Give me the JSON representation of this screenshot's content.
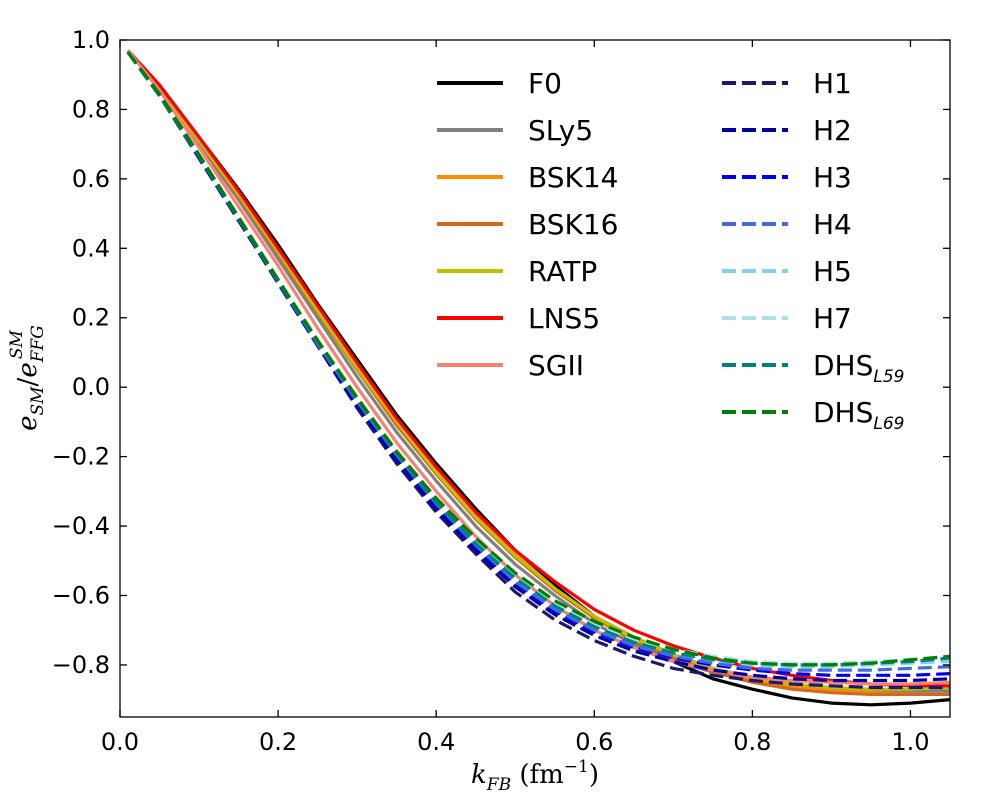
{
  "chart_data": {
    "type": "line",
    "xlabel": "k_FB (fm^-1)",
    "ylabel": "e_SM / e_FFG^SM",
    "xlim": [
      0.0,
      1.05
    ],
    "ylim": [
      -0.95,
      1.0
    ],
    "x_ticks": [
      0.0,
      0.2,
      0.4,
      0.6,
      0.8,
      1.0
    ],
    "y_ticks": [
      1.0,
      0.8,
      0.6,
      0.4,
      0.2,
      0.0,
      -0.2,
      -0.4,
      -0.6,
      -0.8
    ],
    "x_tick_labels": [
      "0.0",
      "0.2",
      "0.4",
      "0.6",
      "0.8",
      "1.0"
    ],
    "y_tick_labels": [
      "1.0",
      "0.8",
      "0.6",
      "0.4",
      "0.2",
      "0.0",
      "−0.2",
      "−0.4",
      "−0.6",
      "−0.8"
    ],
    "x": [
      0.01,
      0.05,
      0.1,
      0.15,
      0.2,
      0.25,
      0.3,
      0.35,
      0.4,
      0.45,
      0.5,
      0.55,
      0.6,
      0.65,
      0.7,
      0.75,
      0.8,
      0.85,
      0.9,
      0.95,
      1.0,
      1.05
    ],
    "legend": "top-right, two columns",
    "series": [
      {
        "name": "F0",
        "label": "F0",
        "sub": "",
        "color": "#000000",
        "dash": "solid",
        "values": [
          0.97,
          0.87,
          0.72,
          0.57,
          0.41,
          0.24,
          0.08,
          -0.08,
          -0.22,
          -0.35,
          -0.47,
          -0.57,
          -0.66,
          -0.73,
          -0.79,
          -0.84,
          -0.87,
          -0.895,
          -0.91,
          -0.915,
          -0.91,
          -0.9
        ]
      },
      {
        "name": "SLy5",
        "label": "SLy5",
        "sub": "",
        "color": "#808080",
        "dash": "solid",
        "values": [
          0.97,
          0.86,
          0.7,
          0.54,
          0.37,
          0.2,
          0.03,
          -0.13,
          -0.27,
          -0.4,
          -0.51,
          -0.6,
          -0.68,
          -0.74,
          -0.79,
          -0.82,
          -0.845,
          -0.86,
          -0.87,
          -0.875,
          -0.875,
          -0.875
        ]
      },
      {
        "name": "BSK14",
        "label": "BSK14",
        "sub": "",
        "color": "#ff8c00",
        "dash": "solid",
        "values": [
          0.97,
          0.865,
          0.71,
          0.555,
          0.39,
          0.22,
          0.06,
          -0.1,
          -0.24,
          -0.37,
          -0.48,
          -0.58,
          -0.66,
          -0.72,
          -0.77,
          -0.81,
          -0.84,
          -0.865,
          -0.875,
          -0.88,
          -0.885,
          -0.885
        ]
      },
      {
        "name": "BSK16",
        "label": "BSK16",
        "sub": "",
        "color": "#d2691e",
        "dash": "solid",
        "values": [
          0.97,
          0.865,
          0.71,
          0.55,
          0.385,
          0.215,
          0.05,
          -0.11,
          -0.25,
          -0.38,
          -0.49,
          -0.585,
          -0.665,
          -0.73,
          -0.78,
          -0.82,
          -0.85,
          -0.87,
          -0.88,
          -0.885,
          -0.885,
          -0.885
        ]
      },
      {
        "name": "RATP",
        "label": "RATP",
        "sub": "",
        "color": "#c0c000",
        "dash": "solid",
        "values": [
          0.97,
          0.865,
          0.71,
          0.555,
          0.39,
          0.22,
          0.055,
          -0.1,
          -0.245,
          -0.375,
          -0.485,
          -0.58,
          -0.66,
          -0.725,
          -0.77,
          -0.81,
          -0.835,
          -0.855,
          -0.865,
          -0.87,
          -0.87,
          -0.865
        ]
      },
      {
        "name": "LNS5",
        "label": "LNS5",
        "sub": "",
        "color": "#ff0000",
        "dash": "solid",
        "values": [
          0.97,
          0.87,
          0.72,
          0.565,
          0.4,
          0.235,
          0.07,
          -0.09,
          -0.23,
          -0.36,
          -0.47,
          -0.56,
          -0.64,
          -0.7,
          -0.745,
          -0.78,
          -0.81,
          -0.83,
          -0.845,
          -0.855,
          -0.86,
          -0.86
        ]
      },
      {
        "name": "SGII",
        "label": "SGII",
        "sub": "",
        "color": "#fa8072",
        "dash": "solid",
        "values": [
          0.97,
          0.855,
          0.69,
          0.52,
          0.35,
          0.17,
          0.0,
          -0.16,
          -0.3,
          -0.43,
          -0.54,
          -0.63,
          -0.7,
          -0.75,
          -0.79,
          -0.815,
          -0.835,
          -0.845,
          -0.85,
          -0.855,
          -0.855,
          -0.85
        ]
      },
      {
        "name": "H1",
        "label": "H1",
        "sub": "",
        "color": "#191970",
        "dash": "dashed",
        "values": [
          0.965,
          0.84,
          0.66,
          0.48,
          0.3,
          0.12,
          -0.06,
          -0.22,
          -0.36,
          -0.48,
          -0.59,
          -0.67,
          -0.73,
          -0.775,
          -0.81,
          -0.83,
          -0.845,
          -0.855,
          -0.86,
          -0.865,
          -0.865,
          -0.865
        ]
      },
      {
        "name": "H2",
        "label": "H2",
        "sub": "",
        "color": "#0000a0",
        "dash": "dashed",
        "values": [
          0.965,
          0.84,
          0.66,
          0.48,
          0.3,
          0.12,
          -0.05,
          -0.21,
          -0.35,
          -0.47,
          -0.575,
          -0.655,
          -0.715,
          -0.76,
          -0.79,
          -0.815,
          -0.83,
          -0.84,
          -0.845,
          -0.845,
          -0.845,
          -0.84
        ]
      },
      {
        "name": "H3",
        "label": "H3",
        "sub": "",
        "color": "#0000ee",
        "dash": "dashed",
        "values": [
          0.965,
          0.84,
          0.66,
          0.48,
          0.3,
          0.12,
          -0.045,
          -0.2,
          -0.34,
          -0.46,
          -0.565,
          -0.645,
          -0.705,
          -0.75,
          -0.78,
          -0.8,
          -0.815,
          -0.825,
          -0.83,
          -0.83,
          -0.83,
          -0.825
        ]
      },
      {
        "name": "H4",
        "label": "H4",
        "sub": "",
        "color": "#4169e1",
        "dash": "dashed",
        "values": [
          0.965,
          0.84,
          0.665,
          0.485,
          0.305,
          0.125,
          -0.04,
          -0.195,
          -0.335,
          -0.455,
          -0.56,
          -0.64,
          -0.7,
          -0.745,
          -0.775,
          -0.795,
          -0.81,
          -0.815,
          -0.815,
          -0.815,
          -0.81,
          -0.805
        ]
      },
      {
        "name": "H5",
        "label": "H5",
        "sub": "",
        "color": "#87ceeb",
        "dash": "dashed",
        "values": [
          0.965,
          0.845,
          0.67,
          0.49,
          0.31,
          0.13,
          -0.035,
          -0.19,
          -0.325,
          -0.445,
          -0.55,
          -0.63,
          -0.69,
          -0.735,
          -0.765,
          -0.785,
          -0.8,
          -0.805,
          -0.805,
          -0.8,
          -0.795,
          -0.79
        ]
      },
      {
        "name": "H7",
        "label": "H7",
        "sub": "",
        "color": "#b0e0e6",
        "dash": "dashed",
        "values": [
          0.965,
          0.845,
          0.67,
          0.49,
          0.31,
          0.135,
          -0.03,
          -0.185,
          -0.32,
          -0.44,
          -0.54,
          -0.62,
          -0.68,
          -0.725,
          -0.755,
          -0.775,
          -0.79,
          -0.795,
          -0.795,
          -0.79,
          -0.785,
          -0.78
        ]
      },
      {
        "name": "DHS_L59",
        "label": "DHS",
        "sub": "L59",
        "color": "#008080",
        "dash": "dashed",
        "values": [
          0.965,
          0.84,
          0.665,
          0.485,
          0.305,
          0.13,
          -0.035,
          -0.19,
          -0.33,
          -0.45,
          -0.55,
          -0.63,
          -0.69,
          -0.735,
          -0.765,
          -0.785,
          -0.795,
          -0.8,
          -0.8,
          -0.795,
          -0.79,
          -0.78
        ]
      },
      {
        "name": "DHS_L69",
        "label": "DHS",
        "sub": "L69",
        "color": "#008000",
        "dash": "dashed",
        "values": [
          0.965,
          0.845,
          0.67,
          0.49,
          0.31,
          0.135,
          -0.03,
          -0.185,
          -0.32,
          -0.435,
          -0.535,
          -0.615,
          -0.675,
          -0.72,
          -0.755,
          -0.78,
          -0.795,
          -0.8,
          -0.8,
          -0.795,
          -0.785,
          -0.775
        ]
      }
    ]
  }
}
